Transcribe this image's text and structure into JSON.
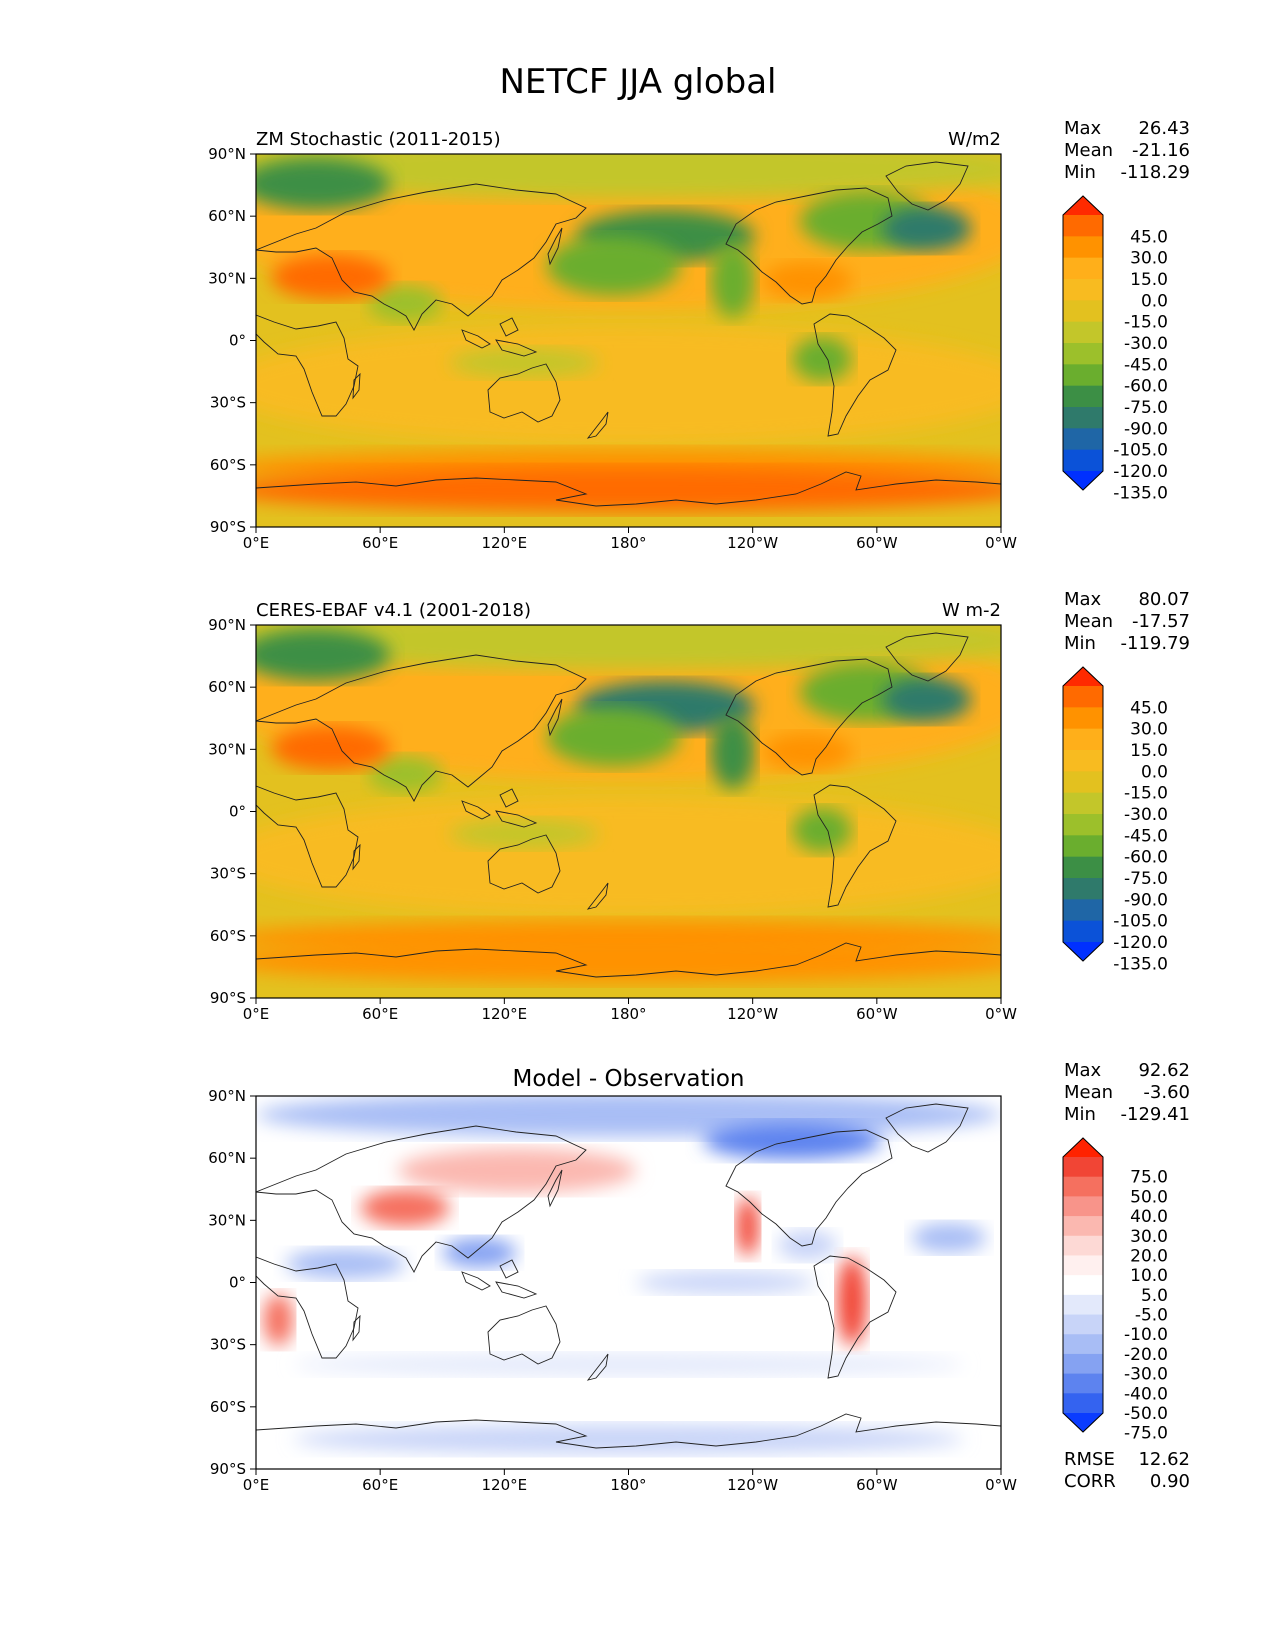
{
  "title": "NETCF JJA global",
  "x_ticks": [
    "0°E",
    "60°E",
    "120°E",
    "180°",
    "120°W",
    "60°W",
    "0°W"
  ],
  "y_ticks": [
    "90°N",
    "60°N",
    "30°N",
    "0°",
    "30°S",
    "60°S",
    "90°S"
  ],
  "panels": [
    {
      "id": "model",
      "left_title": "ZM Stochastic (2011-2015)",
      "center_title": "",
      "units": "W/m2",
      "stats": [
        {
          "label": "Max",
          "value": "26.43"
        },
        {
          "label": "Mean",
          "value": "-21.16"
        },
        {
          "label": "Min",
          "value": "-118.29"
        }
      ],
      "colorbar": {
        "labels": [
          "45.0",
          "30.0",
          "15.0",
          "0.0",
          "-15.0",
          "-30.0",
          "-45.0",
          "-60.0",
          "-75.0",
          "-90.0",
          "-105.0",
          "-120.0",
          "-135.0"
        ],
        "colors": [
          "#ff2a00",
          "#ff6a00",
          "#ff9200",
          "#ffaf1a",
          "#f8bb20",
          "#e3c11f",
          "#c3c62a",
          "#9cc02b",
          "#6aae2e",
          "#3c8f45",
          "#2f7a6b",
          "#1f66a6",
          "#0b52d8",
          "#0030ff"
        ]
      }
    },
    {
      "id": "obs",
      "left_title": "CERES-EBAF v4.1 (2001-2018)",
      "center_title": "",
      "units": "W m-2",
      "stats": [
        {
          "label": "Max",
          "value": "80.07"
        },
        {
          "label": "Mean",
          "value": "-17.57"
        },
        {
          "label": "Min",
          "value": "-119.79"
        }
      ],
      "colorbar": {
        "labels": [
          "45.0",
          "30.0",
          "15.0",
          "0.0",
          "-15.0",
          "-30.0",
          "-45.0",
          "-60.0",
          "-75.0",
          "-90.0",
          "-105.0",
          "-120.0",
          "-135.0"
        ],
        "colors": [
          "#ff2a00",
          "#ff6a00",
          "#ff9200",
          "#ffaf1a",
          "#f8bb20",
          "#e3c11f",
          "#c3c62a",
          "#9cc02b",
          "#6aae2e",
          "#3c8f45",
          "#2f7a6b",
          "#1f66a6",
          "#0b52d8",
          "#0030ff"
        ]
      }
    },
    {
      "id": "diff",
      "left_title": "",
      "center_title": "Model - Observation",
      "units": "",
      "stats": [
        {
          "label": "Max",
          "value": "92.62"
        },
        {
          "label": "Mean",
          "value": "-3.60"
        },
        {
          "label": "Min",
          "value": "-129.41"
        }
      ],
      "colorbar": {
        "labels": [
          "75.0",
          "50.0",
          "40.0",
          "30.0",
          "20.0",
          "10.0",
          "5.0",
          "-5.0",
          "-10.0",
          "-20.0",
          "-30.0",
          "-40.0",
          "-50.0",
          "-75.0"
        ],
        "colors": [
          "#ff2200",
          "#f14535",
          "#f5705f",
          "#f8948a",
          "#fbb8b0",
          "#fdd9d5",
          "#fff0ef",
          "#ffffff",
          "#e3e9fb",
          "#c8d4f8",
          "#a8bdf5",
          "#85a2f2",
          "#5d83ef",
          "#3463f0",
          "#0a3cff"
        ]
      },
      "footer_stats": [
        {
          "label": "RMSE",
          "value": "12.62"
        },
        {
          "label": "CORR",
          "value": "0.90"
        }
      ]
    }
  ]
}
